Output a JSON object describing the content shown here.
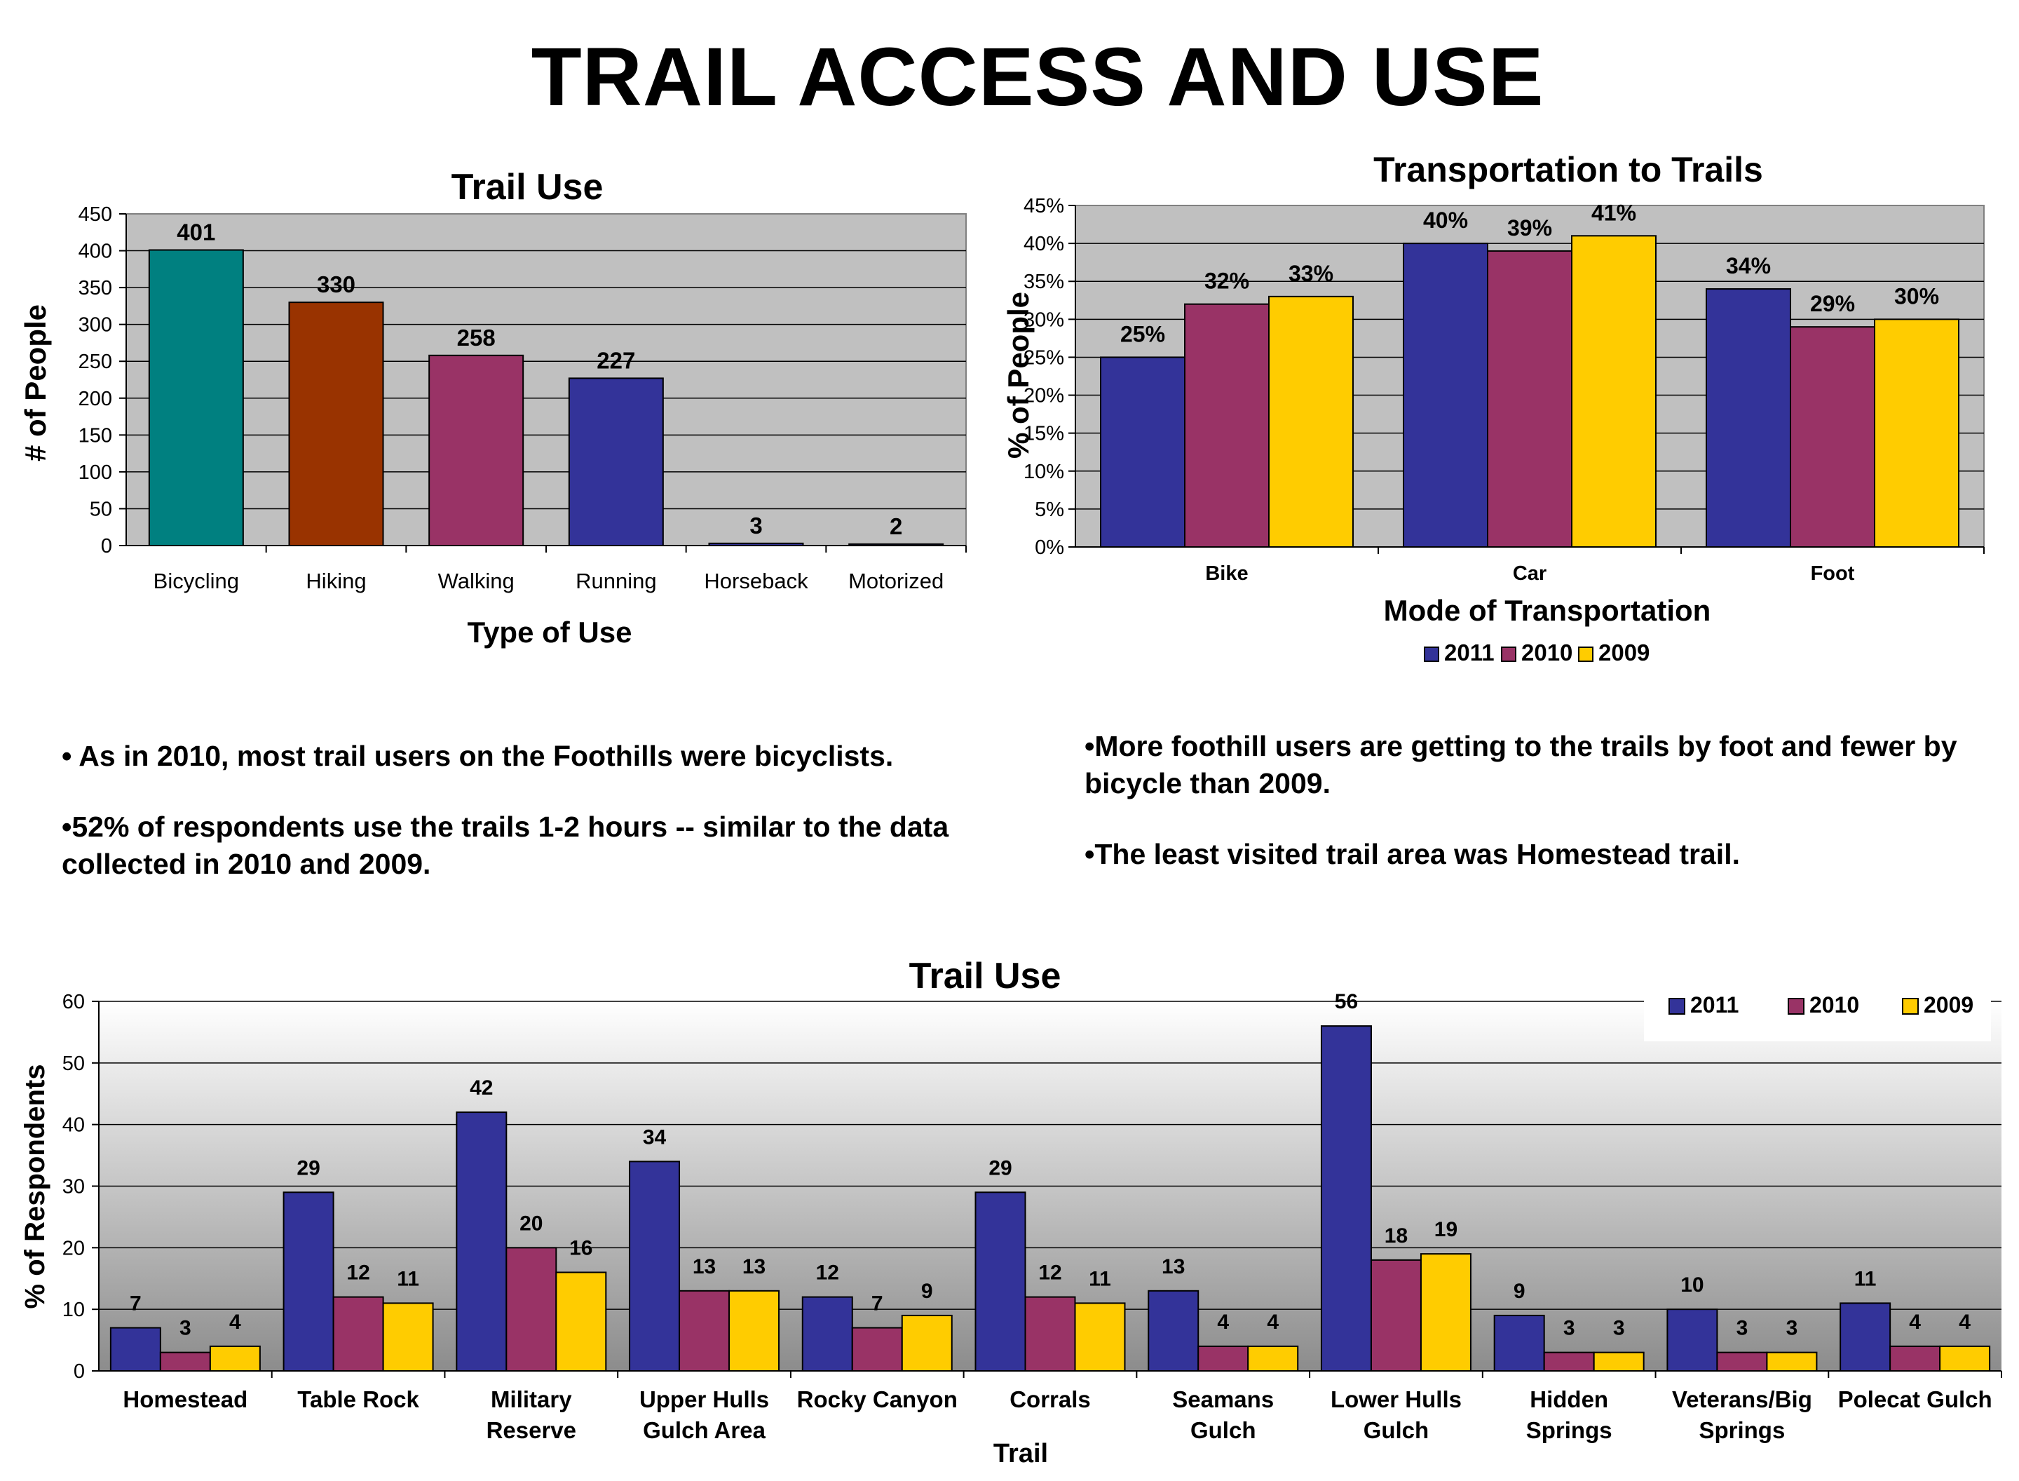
{
  "page_title": "TRAIL ACCESS AND USE",
  "bullets_left": [
    "• As in 2010, most trail users on the Foothills were bicyclists.",
    "•52% of respondents use the trails 1-2 hours -- similar to the data collected in 2010 and 2009."
  ],
  "bullets_right": [
    "•More foothill users are getting to the trails by foot and fewer by bicycle than 2009.",
    "•The least visited trail area was Homestead trail."
  ],
  "colors": {
    "c2011": "#333399",
    "c2010": "#993366",
    "c2009": "#ffcc00",
    "plot_gray": "#c0c0c0"
  },
  "chart_data": [
    {
      "type": "bar",
      "title": "Trail Use",
      "xlabel": "Type of Use",
      "ylabel": "# of People",
      "categories": [
        "Bicycling",
        "Hiking",
        "Walking",
        "Running",
        "Horseback",
        "Motorized"
      ],
      "values": [
        401,
        330,
        258,
        227,
        3,
        2
      ],
      "value_labels": [
        "401",
        "330",
        "258",
        "227",
        "3",
        "2"
      ],
      "bar_colors": [
        "#008080",
        "#993300",
        "#993366",
        "#333399",
        "#333399",
        "#333399"
      ],
      "ylim": [
        0,
        450
      ],
      "yticks": [
        "0",
        "50",
        "100",
        "150",
        "200",
        "250",
        "300",
        "350",
        "400",
        "450"
      ],
      "grid": true
    },
    {
      "type": "bar",
      "title": "Transportation to Trails",
      "xlabel": "Mode of Transportation",
      "ylabel": "% of People",
      "categories": [
        "Bike",
        "Car",
        "Foot"
      ],
      "series": [
        {
          "name": "2011",
          "values": [
            25,
            40,
            34
          ],
          "labels": [
            "25%",
            "40%",
            "34%"
          ]
        },
        {
          "name": "2010",
          "values": [
            32,
            39,
            29
          ],
          "labels": [
            "32%",
            "39%",
            "29%"
          ]
        },
        {
          "name": "2009",
          "values": [
            33,
            41,
            30
          ],
          "labels": [
            "33%",
            "41%",
            "30%"
          ]
        }
      ],
      "ylim": [
        0,
        45
      ],
      "yticks": [
        "0%",
        "5%",
        "10%",
        "15%",
        "20%",
        "25%",
        "30%",
        "35%",
        "40%",
        "45%"
      ],
      "legend": "bottom",
      "grid": true
    },
    {
      "type": "bar",
      "title": "Trail Use",
      "xlabel": "Trail",
      "ylabel": "% of Respondents",
      "categories": [
        [
          "Homestead"
        ],
        [
          "Table Rock"
        ],
        [
          "Military",
          "Reserve"
        ],
        [
          "Upper Hulls",
          "Gulch Area"
        ],
        [
          "Rocky Canyon"
        ],
        [
          "Corrals"
        ],
        [
          "Seamans",
          "Gulch"
        ],
        [
          "Lower Hulls",
          "Gulch"
        ],
        [
          "Hidden",
          "Springs"
        ],
        [
          "Veterans/Big",
          "Springs"
        ],
        [
          "Polecat Gulch"
        ]
      ],
      "series": [
        {
          "name": "2011",
          "values": [
            7,
            29,
            42,
            34,
            12,
            29,
            13,
            56,
            9,
            10,
            11
          ]
        },
        {
          "name": "2010",
          "values": [
            3,
            12,
            20,
            13,
            7,
            12,
            4,
            18,
            3,
            3,
            4
          ]
        },
        {
          "name": "2009",
          "values": [
            4,
            11,
            16,
            13,
            9,
            11,
            4,
            19,
            3,
            3,
            4
          ]
        }
      ],
      "ylim": [
        0,
        60
      ],
      "yticks": [
        "0",
        "10",
        "20",
        "30",
        "40",
        "50",
        "60"
      ],
      "legend": "top-right",
      "grid": true
    }
  ]
}
